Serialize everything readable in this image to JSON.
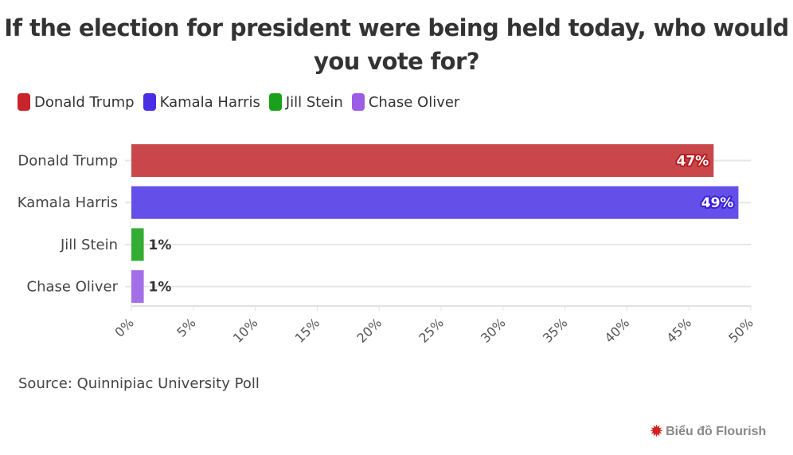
{
  "header": {
    "title_line1": "If the election for president were being held today, who would",
    "title_line2": "you vote for?"
  },
  "legend": {
    "items": [
      {
        "label": "Donald Trump",
        "color": "#c8242a"
      },
      {
        "label": "Kamala Harris",
        "color": "#4a2ee6"
      },
      {
        "label": "Jill Stein",
        "color": "#1aa01a"
      },
      {
        "label": "Chase Oliver",
        "color": "#9b5ce6"
      }
    ]
  },
  "footer": {
    "source": "Source: Quinnipiac University Poll",
    "credit": "Biểu đồ Flourish",
    "credit_icon": "flourish-burst-icon"
  },
  "chart_data": {
    "type": "bar",
    "orientation": "horizontal",
    "title": "If the election for president were being held today, who would you vote for?",
    "categories": [
      "Donald Trump",
      "Kamala Harris",
      "Jill Stein",
      "Chase Oliver"
    ],
    "values": [
      47,
      49,
      1,
      1
    ],
    "value_labels": [
      "47%",
      "49%",
      "1%",
      "1%"
    ],
    "colors": [
      "#c9474b",
      "#6450e8",
      "#33ad33",
      "#a26fe8"
    ],
    "label_outline_colors": [
      "#b71c20",
      "#3a20d8",
      null,
      null
    ],
    "xlabel": "",
    "ylabel": "",
    "xlim": [
      0,
      50
    ],
    "x_ticks": [
      0,
      5,
      10,
      15,
      20,
      25,
      30,
      35,
      40,
      45,
      50
    ],
    "x_tick_labels": [
      "0%",
      "5%",
      "10%",
      "15%",
      "20%",
      "25%",
      "30%",
      "35%",
      "40%",
      "45%",
      "50%"
    ],
    "grid": true,
    "legend_position": "top-left",
    "source": "Quinnipiac University Poll"
  }
}
